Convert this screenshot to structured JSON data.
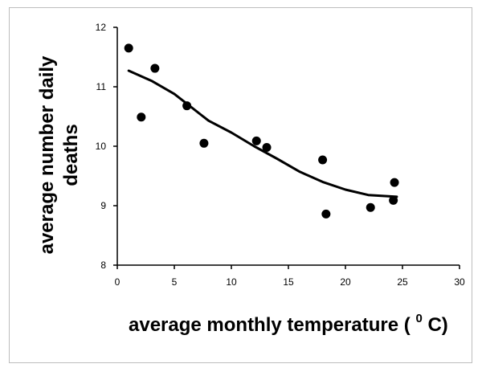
{
  "chart_data": {
    "type": "scatter",
    "title": "",
    "xlabel": "average monthly temperature (",
    "xlabel_sup": "0",
    "xlabel_suffix": "C)",
    "ylabel_line1": "average number daily",
    "ylabel_line2": "deaths",
    "xlim": [
      0,
      30
    ],
    "ylim": [
      8,
      12
    ],
    "x_ticks": [
      0,
      5,
      10,
      15,
      20,
      25,
      30
    ],
    "y_ticks": [
      8,
      9,
      10,
      11,
      12
    ],
    "grid": false,
    "legend": "none",
    "points": [
      {
        "x": 1.0,
        "y": 11.65
      },
      {
        "x": 2.1,
        "y": 10.49
      },
      {
        "x": 3.3,
        "y": 11.31
      },
      {
        "x": 6.1,
        "y": 10.68
      },
      {
        "x": 7.6,
        "y": 10.05
      },
      {
        "x": 12.2,
        "y": 10.09
      },
      {
        "x": 13.1,
        "y": 9.98
      },
      {
        "x": 18.0,
        "y": 9.77
      },
      {
        "x": 18.3,
        "y": 8.86
      },
      {
        "x": 22.2,
        "y": 8.97
      },
      {
        "x": 24.2,
        "y": 9.09
      },
      {
        "x": 24.3,
        "y": 9.39
      }
    ],
    "trend_line": [
      {
        "x": 1.0,
        "y": 11.27
      },
      {
        "x": 3.0,
        "y": 11.1
      },
      {
        "x": 5.0,
        "y": 10.88
      },
      {
        "x": 8.0,
        "y": 10.43
      },
      {
        "x": 10.0,
        "y": 10.23
      },
      {
        "x": 12.0,
        "y": 10.0
      },
      {
        "x": 14.0,
        "y": 9.79
      },
      {
        "x": 16.0,
        "y": 9.57
      },
      {
        "x": 18.0,
        "y": 9.4
      },
      {
        "x": 20.0,
        "y": 9.27
      },
      {
        "x": 22.0,
        "y": 9.18
      },
      {
        "x": 24.5,
        "y": 9.15
      }
    ],
    "colors": {
      "marker": "#000000",
      "line": "#000000",
      "axis": "#000000"
    }
  }
}
